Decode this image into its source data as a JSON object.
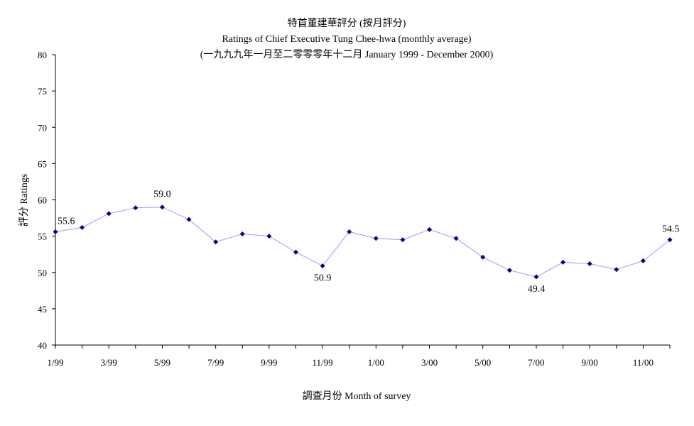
{
  "chart_data": {
    "type": "line",
    "title": "特首董建華評分 (按月評分)",
    "subtitle": "Ratings of Chief Executive Tung Chee-hwa (monthly average)",
    "subtitle2": "(一九九九年一月至二零零零年十二月 January 1999 - December 2000)",
    "xlabel": "調查月份 Month of survey",
    "ylabel": "評分 Ratings",
    "ylim": [
      40,
      80
    ],
    "yticks": [
      40,
      45,
      50,
      55,
      60,
      65,
      70,
      75,
      80
    ],
    "grid": false,
    "categories": [
      "1/99",
      "2/99",
      "3/99",
      "4/99",
      "5/99",
      "6/99",
      "7/99",
      "8/99",
      "9/99",
      "10/99",
      "11/99",
      "12/99",
      "1/00",
      "2/00",
      "3/00",
      "4/00",
      "5/00",
      "6/00",
      "7/00",
      "8/00",
      "9/00",
      "10/00",
      "11/00",
      "12/00"
    ],
    "tick_labels": [
      {
        "index": 0,
        "label": "1/99"
      },
      {
        "index": 2,
        "label": "3/99"
      },
      {
        "index": 4,
        "label": "5/99"
      },
      {
        "index": 6,
        "label": "7/99"
      },
      {
        "index": 8,
        "label": "9/99"
      },
      {
        "index": 10,
        "label": "11/99"
      },
      {
        "index": 12,
        "label": "1/00"
      },
      {
        "index": 14,
        "label": "3/00"
      },
      {
        "index": 16,
        "label": "5/00"
      },
      {
        "index": 18,
        "label": "7/00"
      },
      {
        "index": 20,
        "label": "9/00"
      },
      {
        "index": 22,
        "label": "11/00"
      }
    ],
    "series": [
      {
        "name": "Ratings",
        "color": "#9999ff",
        "marker_color": "#000080",
        "values": [
          55.6,
          56.2,
          58.1,
          58.9,
          59.0,
          57.3,
          54.2,
          55.3,
          55.0,
          52.8,
          50.9,
          55.6,
          54.7,
          54.5,
          55.9,
          54.7,
          52.1,
          50.3,
          49.4,
          51.4,
          51.2,
          50.4,
          51.6,
          54.5
        ]
      }
    ],
    "annotations": [
      {
        "index": 0,
        "text": "55.6",
        "position": "above-right"
      },
      {
        "index": 4,
        "text": "59.0",
        "position": "above"
      },
      {
        "index": 10,
        "text": "50.9",
        "position": "below"
      },
      {
        "index": 18,
        "text": "49.4",
        "position": "below"
      },
      {
        "index": 23,
        "text": "54.5",
        "position": "above-right"
      }
    ]
  }
}
